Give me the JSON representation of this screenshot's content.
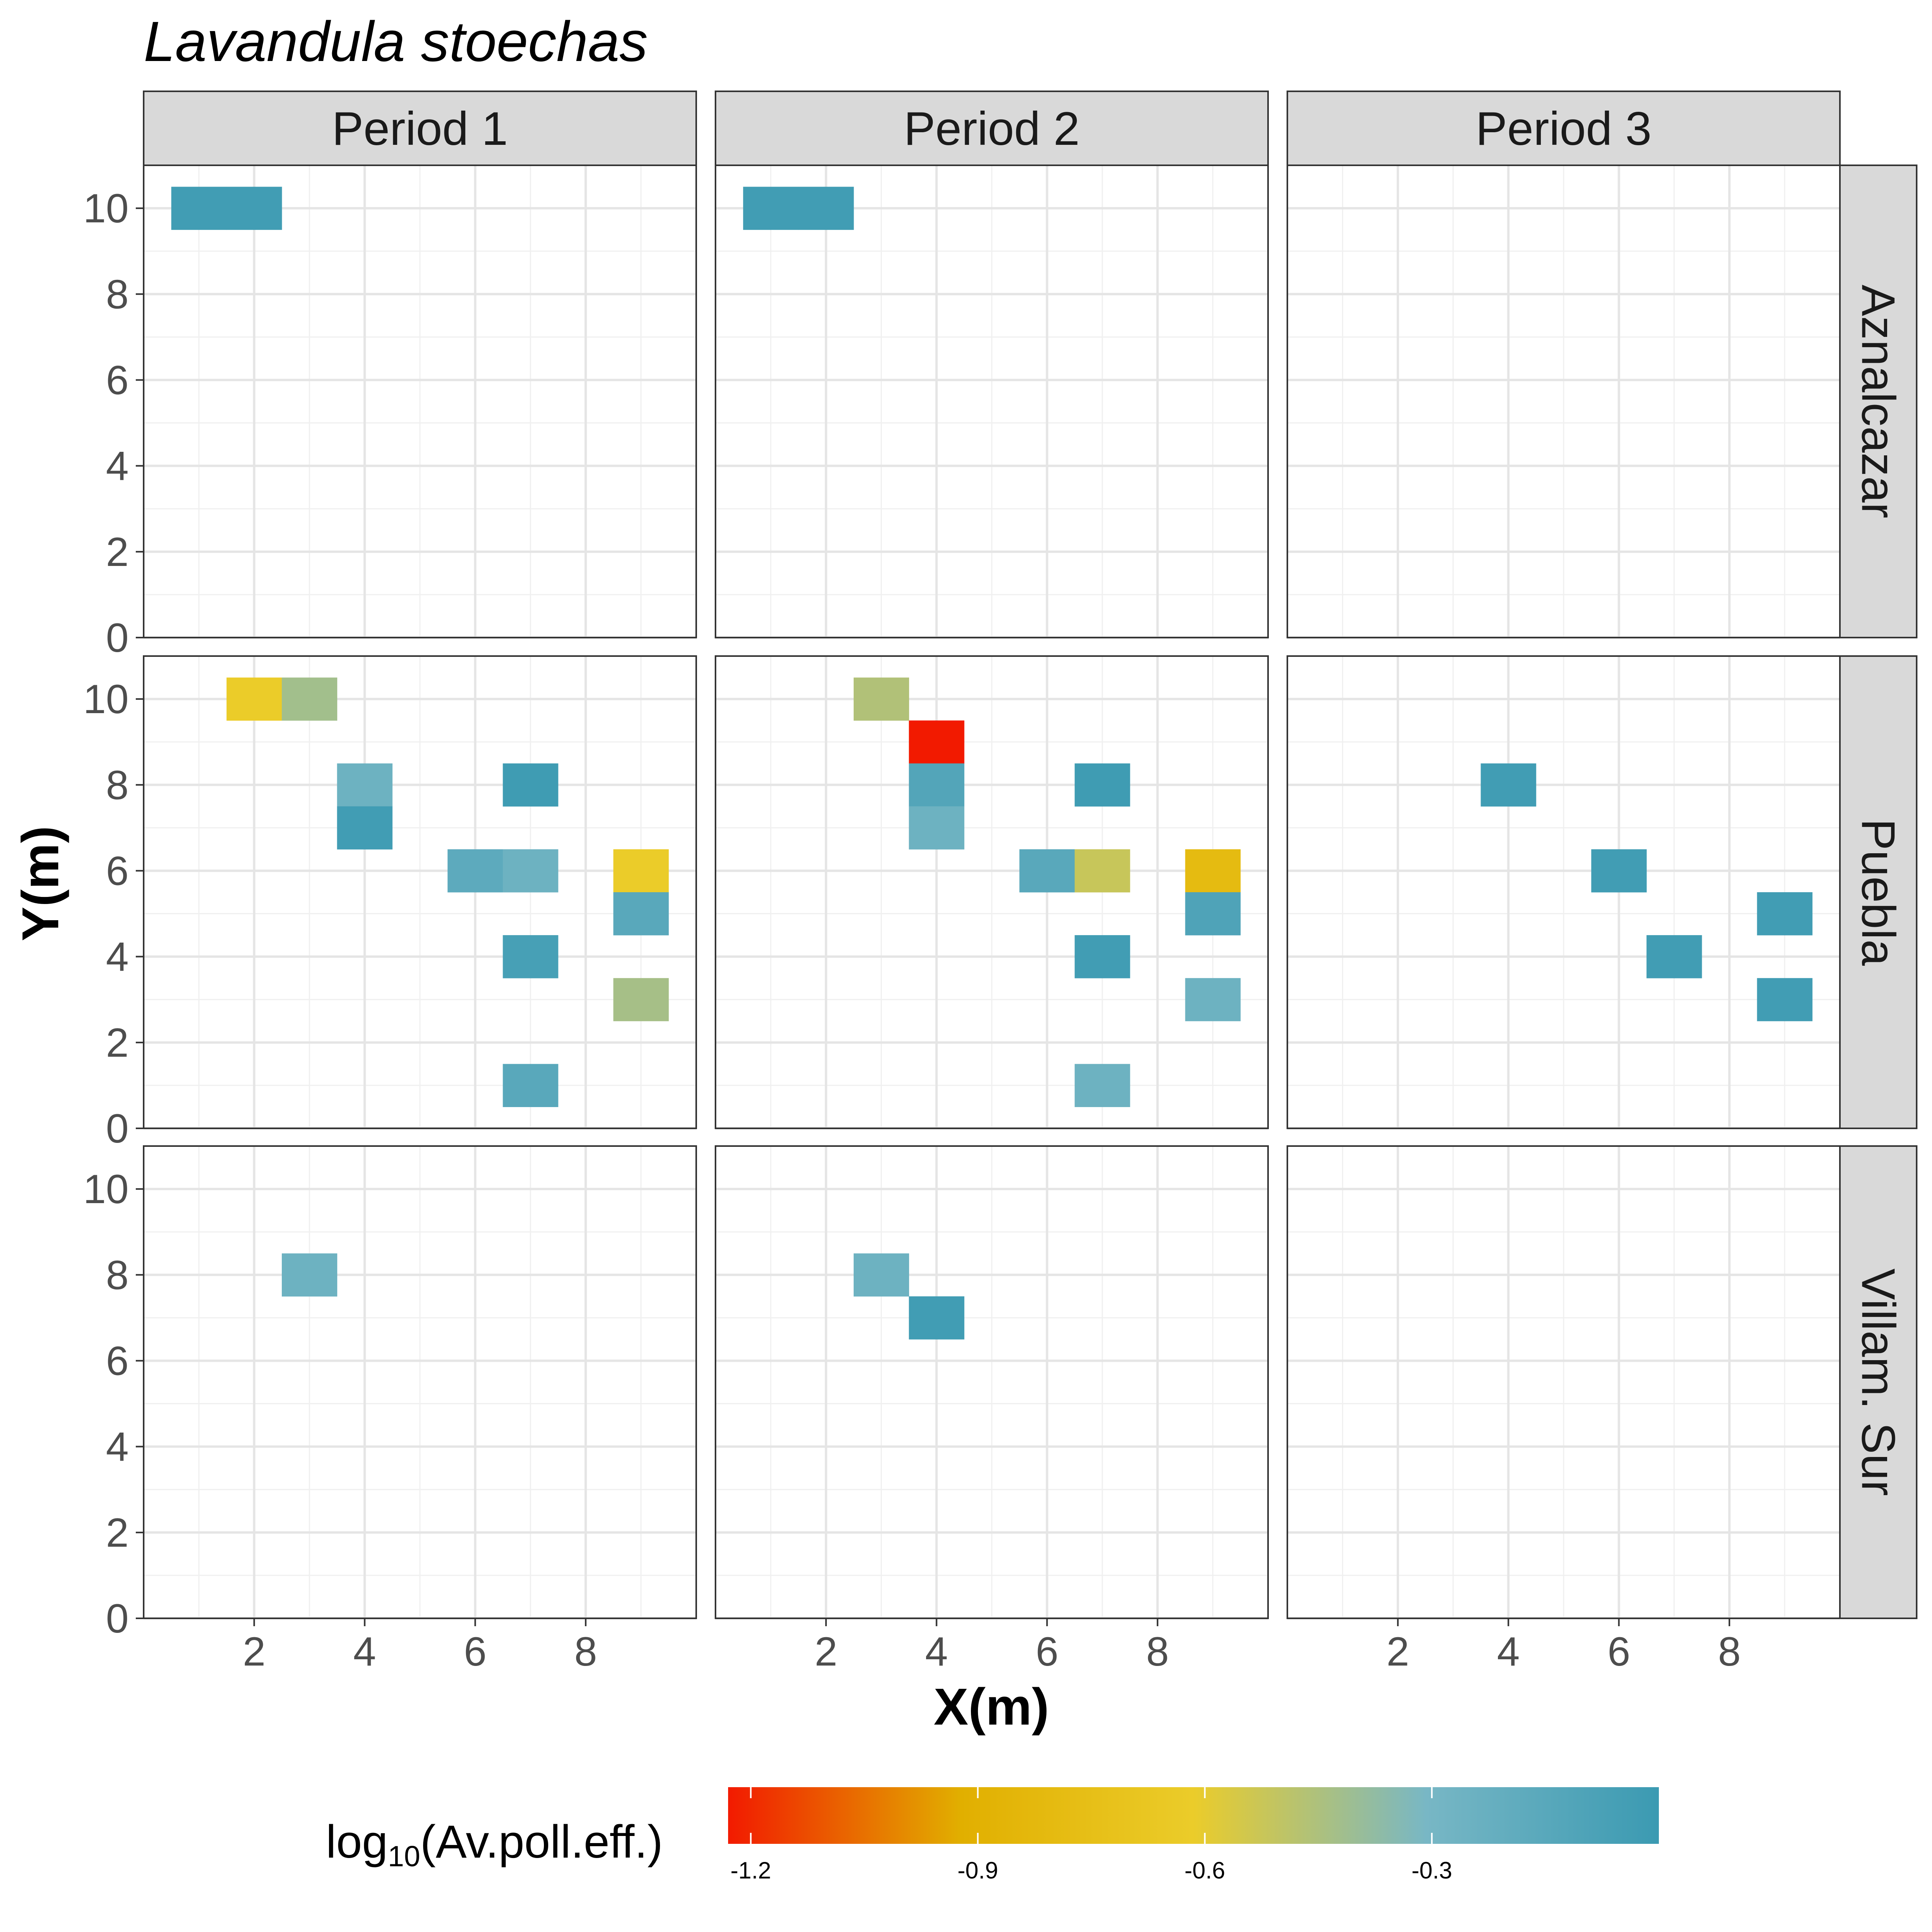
{
  "chart_data": {
    "type": "heatmap",
    "title": "Lavandula stoechas",
    "xlabel": "X(m)",
    "ylabel": "Y(m)",
    "xlim": [
      0,
      10
    ],
    "ylim": [
      0,
      11
    ],
    "x_ticks": [
      2,
      4,
      6,
      8
    ],
    "y_ticks": [
      0,
      2,
      4,
      6,
      8,
      10
    ],
    "grid": true,
    "columns": [
      "Period 1",
      "Period 2",
      "Period 3"
    ],
    "rows": [
      "Aznalcazar",
      "Puebla",
      "Villam. Sur"
    ],
    "legend": {
      "title_main": "log",
      "title_sub": "10",
      "title_rest": "(Av.poll.eff.)",
      "position": "bottom",
      "ticks": [
        "-1.2",
        "-0.9",
        "-0.6",
        "-0.3"
      ],
      "tick_values": [
        -1.2,
        -0.9,
        -0.6,
        -0.3
      ],
      "range": [
        -1.23,
        0
      ],
      "colors": [
        "#f21a00",
        "#e1af00",
        "#ebcc2a",
        "#78b7c5",
        "#3b9ab2"
      ]
    },
    "cells": [
      {
        "row": "Aznalcazar",
        "col": "Period 1",
        "x": 1,
        "y": 10,
        "value": -0.03
      },
      {
        "row": "Aznalcazar",
        "col": "Period 1",
        "x": 2,
        "y": 10,
        "value": -0.03
      },
      {
        "row": "Aznalcazar",
        "col": "Period 2",
        "x": 1,
        "y": 10,
        "value": -0.03
      },
      {
        "row": "Aznalcazar",
        "col": "Period 2",
        "x": 2,
        "y": 10,
        "value": -0.03
      },
      {
        "row": "Puebla",
        "col": "Period 1",
        "x": 2,
        "y": 10,
        "value": -0.62
      },
      {
        "row": "Puebla",
        "col": "Period 1",
        "x": 3,
        "y": 10,
        "value": -0.42
      },
      {
        "row": "Puebla",
        "col": "Period 1",
        "x": 4,
        "y": 8,
        "value": -0.25
      },
      {
        "row": "Puebla",
        "col": "Period 1",
        "x": 4,
        "y": 7,
        "value": -0.03
      },
      {
        "row": "Puebla",
        "col": "Period 1",
        "x": 7,
        "y": 8,
        "value": -0.02
      },
      {
        "row": "Puebla",
        "col": "Period 1",
        "x": 6,
        "y": 6,
        "value": -0.17
      },
      {
        "row": "Puebla",
        "col": "Period 1",
        "x": 7,
        "y": 6,
        "value": -0.25
      },
      {
        "row": "Puebla",
        "col": "Period 1",
        "x": 9,
        "y": 6,
        "value": -0.62
      },
      {
        "row": "Puebla",
        "col": "Period 1",
        "x": 9,
        "y": 5,
        "value": -0.15
      },
      {
        "row": "Puebla",
        "col": "Period 1",
        "x": 7,
        "y": 4,
        "value": -0.06
      },
      {
        "row": "Puebla",
        "col": "Period 1",
        "x": 9,
        "y": 3,
        "value": -0.43
      },
      {
        "row": "Puebla",
        "col": "Period 1",
        "x": 7,
        "y": 1,
        "value": -0.15
      },
      {
        "row": "Puebla",
        "col": "Period 2",
        "x": 3,
        "y": 10,
        "value": -0.46
      },
      {
        "row": "Puebla",
        "col": "Period 2",
        "x": 4,
        "y": 9,
        "value": -1.23
      },
      {
        "row": "Puebla",
        "col": "Period 2",
        "x": 4,
        "y": 8,
        "value": -0.12
      },
      {
        "row": "Puebla",
        "col": "Period 2",
        "x": 4,
        "y": 7,
        "value": -0.25
      },
      {
        "row": "Puebla",
        "col": "Period 2",
        "x": 7,
        "y": 8,
        "value": -0.02
      },
      {
        "row": "Puebla",
        "col": "Period 2",
        "x": 6,
        "y": 6,
        "value": -0.15
      },
      {
        "row": "Puebla",
        "col": "Period 2",
        "x": 7,
        "y": 6,
        "value": -0.52
      },
      {
        "row": "Puebla",
        "col": "Period 2",
        "x": 9,
        "y": 6,
        "value": -0.8
      },
      {
        "row": "Puebla",
        "col": "Period 2",
        "x": 9,
        "y": 5,
        "value": -0.1
      },
      {
        "row": "Puebla",
        "col": "Period 2",
        "x": 7,
        "y": 4,
        "value": -0.03
      },
      {
        "row": "Puebla",
        "col": "Period 2",
        "x": 9,
        "y": 3,
        "value": -0.25
      },
      {
        "row": "Puebla",
        "col": "Period 2",
        "x": 7,
        "y": 1,
        "value": -0.25
      },
      {
        "row": "Puebla",
        "col": "Period 3",
        "x": 4,
        "y": 8,
        "value": -0.03
      },
      {
        "row": "Puebla",
        "col": "Period 3",
        "x": 6,
        "y": 6,
        "value": -0.03
      },
      {
        "row": "Puebla",
        "col": "Period 3",
        "x": 9,
        "y": 5,
        "value": -0.03
      },
      {
        "row": "Puebla",
        "col": "Period 3",
        "x": 7,
        "y": 4,
        "value": -0.03
      },
      {
        "row": "Puebla",
        "col": "Period 3",
        "x": 9,
        "y": 3,
        "value": -0.03
      },
      {
        "row": "Villam. Sur",
        "col": "Period 1",
        "x": 3,
        "y": 8,
        "value": -0.25
      },
      {
        "row": "Villam. Sur",
        "col": "Period 2",
        "x": 3,
        "y": 8,
        "value": -0.25
      },
      {
        "row": "Villam. Sur",
        "col": "Period 2",
        "x": 4,
        "y": 7,
        "value": -0.03
      }
    ]
  }
}
